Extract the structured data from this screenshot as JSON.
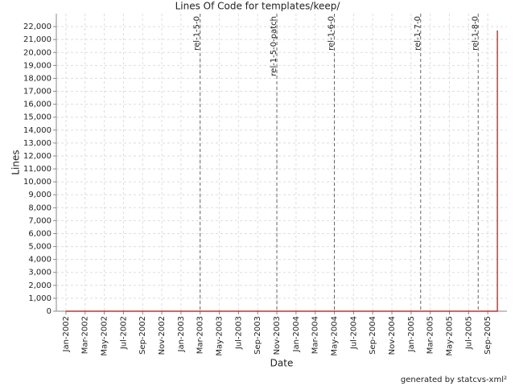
{
  "chart_data": {
    "type": "line",
    "title": "Lines Of Code for templates/keep/",
    "x_label": "Date",
    "y_label": "Lines",
    "footer": "generated by statcvs-xml²",
    "xlim": [
      "2001-12",
      "2005-11"
    ],
    "ylim": [
      0,
      23000
    ],
    "grid": true,
    "xticks": [
      {
        "value": "2002-01",
        "label": "Jan-2002"
      },
      {
        "value": "2002-03",
        "label": "Mar-2002"
      },
      {
        "value": "2002-05",
        "label": "May-2002"
      },
      {
        "value": "2002-07",
        "label": "Jul-2002"
      },
      {
        "value": "2002-09",
        "label": "Sep-2002"
      },
      {
        "value": "2002-11",
        "label": "Nov-2002"
      },
      {
        "value": "2003-01",
        "label": "Jan-2003"
      },
      {
        "value": "2003-03",
        "label": "Mar-2003"
      },
      {
        "value": "2003-05",
        "label": "May-2003"
      },
      {
        "value": "2003-07",
        "label": "Jul-2003"
      },
      {
        "value": "2003-09",
        "label": "Sep-2003"
      },
      {
        "value": "2003-11",
        "label": "Nov-2003"
      },
      {
        "value": "2004-01",
        "label": "Jan-2004"
      },
      {
        "value": "2004-03",
        "label": "Mar-2004"
      },
      {
        "value": "2004-05",
        "label": "May-2004"
      },
      {
        "value": "2004-07",
        "label": "Jul-2004"
      },
      {
        "value": "2004-09",
        "label": "Sep-2004"
      },
      {
        "value": "2004-11",
        "label": "Nov-2004"
      },
      {
        "value": "2005-01",
        "label": "Jan-2005"
      },
      {
        "value": "2005-03",
        "label": "Mar-2005"
      },
      {
        "value": "2005-05",
        "label": "May-2005"
      },
      {
        "value": "2005-07",
        "label": "Jul-2005"
      },
      {
        "value": "2005-09",
        "label": "Sep-2005"
      }
    ],
    "yticks": [
      0,
      {
        "value": 1000,
        "label": "1,000"
      },
      {
        "value": 2000,
        "label": "2,000"
      },
      {
        "value": 3000,
        "label": "3,000"
      },
      {
        "value": 4000,
        "label": "4,000"
      },
      {
        "value": 5000,
        "label": "5,000"
      },
      {
        "value": 6000,
        "label": "6,000"
      },
      {
        "value": 7000,
        "label": "7,000"
      },
      {
        "value": 8000,
        "label": "8,000"
      },
      {
        "value": 9000,
        "label": "9,000"
      },
      {
        "value": 10000,
        "label": "10,000"
      },
      {
        "value": 11000,
        "label": "11,000"
      },
      {
        "value": 12000,
        "label": "12,000"
      },
      {
        "value": 13000,
        "label": "13,000"
      },
      {
        "value": 14000,
        "label": "14,000"
      },
      {
        "value": 15000,
        "label": "15,000"
      },
      {
        "value": 16000,
        "label": "16,000"
      },
      {
        "value": 17000,
        "label": "17,000"
      },
      {
        "value": 18000,
        "label": "18,000"
      },
      {
        "value": 19000,
        "label": "19,000"
      },
      {
        "value": 20000,
        "label": "20,000"
      },
      {
        "value": 21000,
        "label": "21,000"
      },
      {
        "value": 22000,
        "label": "22,000"
      }
    ],
    "annotations": [
      {
        "label": "rel-1-5-0",
        "x": "2003-03"
      },
      {
        "label": "rel-1-5-0-patch",
        "x": "2003-11"
      },
      {
        "label": "rel-1-6-0",
        "x": "2004-05"
      },
      {
        "label": "rel-1-7-0",
        "x": "2005-02"
      },
      {
        "label": "rel-1-8-0",
        "x": "2005-08"
      }
    ],
    "series": [
      {
        "name": "Lines",
        "color": "#cc0000",
        "x": [
          "2002-01",
          "2005-10",
          "2005-10"
        ],
        "values": [
          0,
          0,
          21700
        ]
      }
    ]
  }
}
